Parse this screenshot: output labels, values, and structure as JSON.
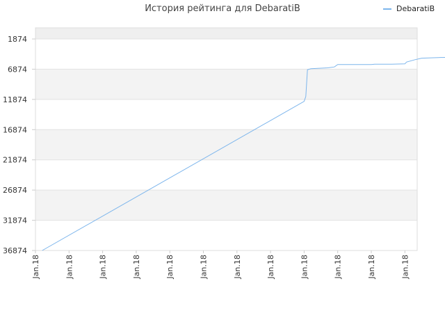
{
  "chart_data": {
    "type": "line",
    "title": "История рейтинга для DebaratiB",
    "legend_position": "top-right",
    "y_reversed": true,
    "ylim": [
      1874,
      36874
    ],
    "y_ticks": [
      1874,
      6874,
      11874,
      16874,
      21874,
      26874,
      31874,
      36874
    ],
    "y_tick_labels": [
      "1874",
      "6874",
      "11874",
      "16874",
      "21874",
      "26874",
      "31874",
      "36874"
    ],
    "x_tick_labels": [
      "Jan.18",
      "Jan.18",
      "Jan.18",
      "Jan.18",
      "Jan.18",
      "Jan.18",
      "Jan.18",
      "Jan.18",
      "Jan.18",
      "Jan.18",
      "Jan.18",
      "Jan.18"
    ],
    "series": [
      {
        "name": "DebaratiB",
        "color": "#7cb5ec",
        "points": [
          [
            0.2,
            36874
          ],
          [
            8.0,
            12200
          ],
          [
            8.05,
            11400
          ],
          [
            8.1,
            6950
          ],
          [
            8.2,
            6800
          ],
          [
            8.7,
            6650
          ],
          [
            8.9,
            6500
          ],
          [
            9.0,
            6100
          ],
          [
            10.0,
            6100
          ],
          [
            10.1,
            6050
          ],
          [
            10.6,
            6050
          ],
          [
            11.0,
            6000
          ],
          [
            11.05,
            5700
          ],
          [
            11.3,
            5300
          ],
          [
            11.5,
            5050
          ],
          [
            12.0,
            4950
          ],
          [
            12.3,
            4900
          ],
          [
            12.6,
            4500
          ]
        ]
      }
    ],
    "grid": true
  }
}
